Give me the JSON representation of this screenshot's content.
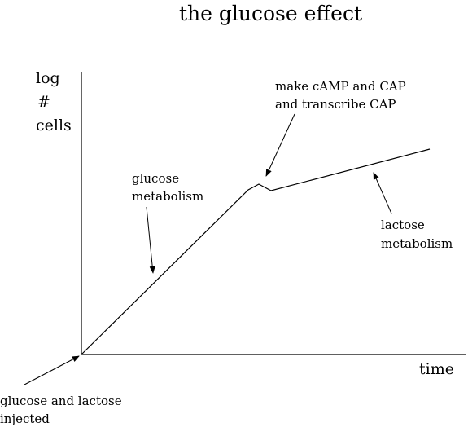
{
  "chart_data": {
    "type": "line",
    "title": "the glucose effect",
    "ylabel_lines": [
      "log",
      "#",
      "cells"
    ],
    "xlabel": "time",
    "grid": false,
    "legend": "none",
    "line_color": "#000000",
    "series": [
      {
        "points": [
          {
            "x": 0,
            "y": 0
          },
          {
            "x": 205,
            "y": 202
          },
          {
            "x": 218,
            "y": 209
          },
          {
            "x": 233,
            "y": 201
          },
          {
            "x": 428,
            "y": 252
          }
        ]
      }
    ],
    "annotations": [
      {
        "id": "glucose-metabolism",
        "lines": [
          "glucose",
          "metabolism"
        ]
      },
      {
        "id": "camp-cap",
        "lines": [
          "make cAMP and CAP",
          "and transcribe CAP"
        ]
      },
      {
        "id": "lactose-metabolism",
        "lines": [
          "lactose",
          "metabolism"
        ]
      },
      {
        "id": "injected",
        "lines": [
          "glucose and lactose",
          "injected"
        ]
      }
    ]
  }
}
